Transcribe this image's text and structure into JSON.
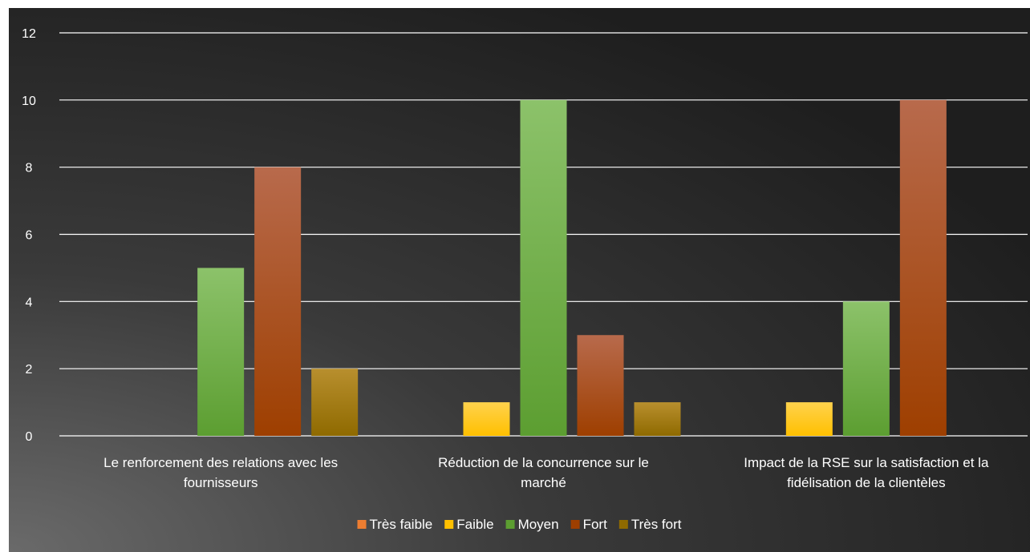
{
  "chart_data": {
    "type": "bar",
    "categories": [
      [
        "Le renforcement des relations avec les",
        "fournisseurs"
      ],
      [
        "Réduction de la concurrence sur le",
        "marché"
      ],
      [
        "Impact de la RSE sur la satisfaction et la",
        "fidélisation de la clientèles"
      ]
    ],
    "series": [
      {
        "name": "Très faible",
        "values": [
          0,
          0,
          0
        ],
        "color": "#ed7d31",
        "color_light": "#f4a06a"
      },
      {
        "name": "Faible",
        "values": [
          0,
          1,
          1
        ],
        "color": "#ffc000",
        "color_light": "#ffd24d"
      },
      {
        "name": "Moyen",
        "values": [
          5,
          10,
          4
        ],
        "color": "#5c9e31",
        "color_light": "#8cc26a"
      },
      {
        "name": "Fort",
        "values": [
          8,
          3,
          10
        ],
        "color": "#9e3f00",
        "color_light": "#b86a4c"
      },
      {
        "name": "Très fort",
        "values": [
          2,
          1,
          0
        ],
        "color": "#8f6a00",
        "color_light": "#b88f2e"
      }
    ],
    "yticks": [
      "0",
      "2",
      "4",
      "6",
      "8",
      "10",
      "12"
    ],
    "ylim": [
      0,
      12
    ],
    "grid": true,
    "legend": "bottom",
    "title": "",
    "xlabel": "",
    "ylabel": ""
  }
}
